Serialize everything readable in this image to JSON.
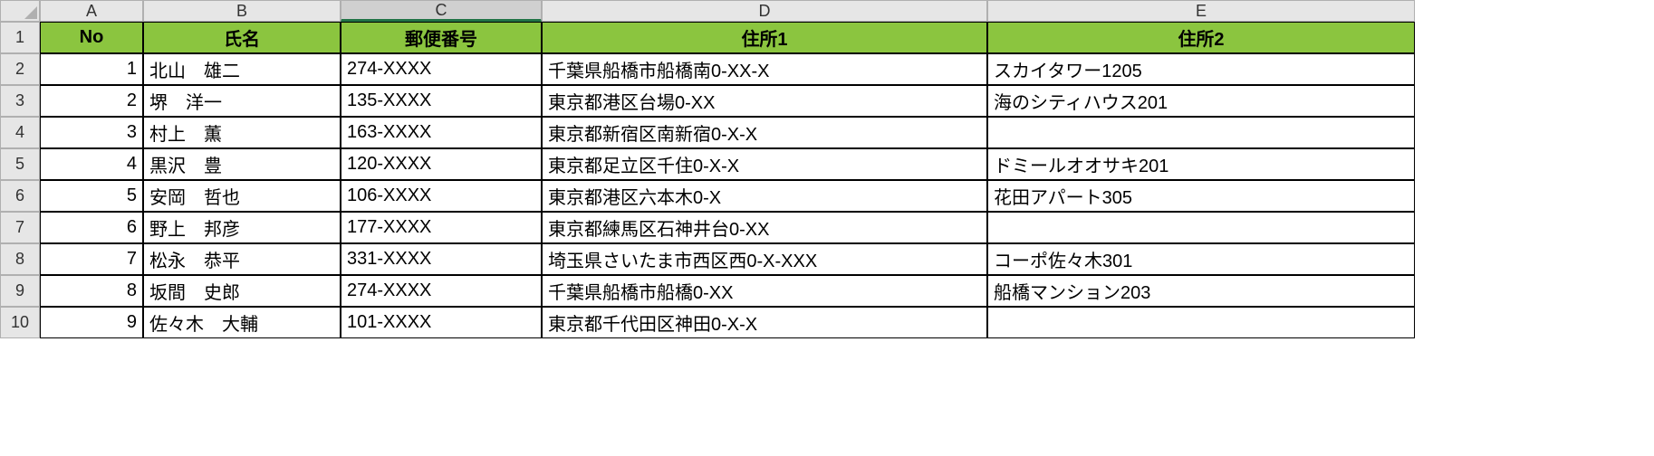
{
  "columns": [
    "A",
    "B",
    "C",
    "D",
    "E"
  ],
  "selected_column_index": 2,
  "row_numbers": [
    1,
    2,
    3,
    4,
    5,
    6,
    7,
    8,
    9,
    10
  ],
  "headers": [
    "No",
    "氏名",
    "郵便番号",
    "住所1",
    "住所2"
  ],
  "rows": [
    {
      "no": "1",
      "name": "北山　雄二",
      "zip": "274-XXXX",
      "addr1": "千葉県船橋市船橋南0-XX-X",
      "addr2": "スカイタワー1205"
    },
    {
      "no": "2",
      "name": "堺　洋一",
      "zip": "135-XXXX",
      "addr1": "東京都港区台場0-XX",
      "addr2": "海のシティハウス201"
    },
    {
      "no": "3",
      "name": "村上　薫",
      "zip": "163-XXXX",
      "addr1": "東京都新宿区南新宿0-X-X",
      "addr2": ""
    },
    {
      "no": "4",
      "name": "黒沢　豊",
      "zip": "120-XXXX",
      "addr1": "東京都足立区千住0-X-X",
      "addr2": "ドミールオオサキ201"
    },
    {
      "no": "5",
      "name": "安岡　哲也",
      "zip": "106-XXXX",
      "addr1": "東京都港区六本木0-X",
      "addr2": "花田アパート305"
    },
    {
      "no": "6",
      "name": "野上　邦彦",
      "zip": "177-XXXX",
      "addr1": "東京都練馬区石神井台0-XX",
      "addr2": ""
    },
    {
      "no": "7",
      "name": "松永　恭平",
      "zip": "331-XXXX",
      "addr1": "埼玉県さいたま市西区西0-X-XXX",
      "addr2": "コーポ佐々木301"
    },
    {
      "no": "8",
      "name": "坂間　史郎",
      "zip": "274-XXXX",
      "addr1": "千葉県船橋市船橋0-XX",
      "addr2": "船橋マンション203"
    },
    {
      "no": "9",
      "name": "佐々木　大輔",
      "zip": "101-XXXX",
      "addr1": "東京都千代田区神田0-X-X",
      "addr2": ""
    }
  ],
  "styles": {
    "header_bg": "#8bc53f",
    "grid_color": "#d0d0d0",
    "data_border": "#000000",
    "col_header_bg": "#e6e6e6"
  }
}
